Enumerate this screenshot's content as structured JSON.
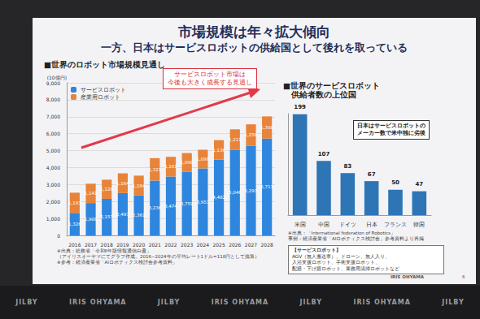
{
  "slide": {
    "title": "市場規模は年々拡大傾向",
    "subtitle": "一方、日本はサービスロボットの供給国として後れを取っている",
    "logo": "IRIS OHYAMA",
    "page": "6",
    "backdrop": [
      "JILBY",
      "IRIS OHYAMA",
      "JILBY",
      "IRIS OHYAMA",
      "JILBY",
      "IRIS OHYAMA",
      "JILBY"
    ],
    "left_notes": [
      "※出典：総務省「令和6年版情報通信白書」",
      "（アイリスオーヤマにてグラフ作成。2016~2024年の平均レート1ドル=118円として換算）",
      "※参考：経済産業省「AIロボティクス検討会参考資料」"
    ],
    "right_notes": [
      "※出典：「International federation of Robotics」",
      "事例：経済産業省「AIロボティクス検討会」参考資料より再掲"
    ],
    "definition": {
      "heading": "【サービスロボット】",
      "lines": [
        "AGV（無人搬送車）、ドローン、無人入り、",
        "入浴支援ロボット、手術支援ロボット、",
        "配膳・下げ膳ロボット、業務用清掃ロボットなど"
      ]
    }
  },
  "chart_data": [
    {
      "type": "bar",
      "title": "■世界のロボット市場規模見通し",
      "y_label": "(10億円)",
      "categories": [
        "2016",
        "2017",
        "2018",
        "2019",
        "2020",
        "2021",
        "2022",
        "2023",
        "2024",
        "2025",
        "2026",
        "2027",
        "2028"
      ],
      "series": [
        {
          "name": "サービスロボット",
          "color": "#2e86de",
          "values": [
            1326,
            1908,
            2157,
            2497,
            2361,
            3236,
            3474,
            3759,
            3953,
            4482,
            5046,
            5293,
            5711
          ],
          "value_labels": [
            "1,326",
            "1,908",
            "2,157",
            "2,497",
            "2,361",
            "3,236",
            "3,474",
            "3,759",
            "3,953",
            "4,482",
            "5,046",
            "5,293",
            "5,711"
          ]
        },
        {
          "name": "産業用ロボット",
          "color": "#e8833a",
          "values": [
            1193,
            1141,
            1128,
            1164,
            1164,
            1321,
            1161,
            1098,
            1099,
            1136,
            1211,
            1258,
            1308
          ],
          "value_labels": [
            "1,193",
            "1,141",
            "1,128",
            "1,164",
            "1,164",
            "1,321",
            "1,161",
            "1,098",
            "1,099",
            "1,136",
            "1,211",
            "1,258",
            "1,308"
          ]
        }
      ],
      "stacked": true,
      "data_labels": true,
      "legend": "top-left",
      "grid": true,
      "ylim": [
        0,
        9000
      ],
      "yticks": [
        0,
        {
          "value": 1000,
          "label": "1,000"
        },
        {
          "value": 2000,
          "label": "2,000"
        },
        {
          "value": 3000,
          "label": "3,000"
        },
        {
          "value": 4000,
          "label": "4,000"
        },
        {
          "value": 5000,
          "label": "5,000"
        },
        {
          "value": 6000,
          "label": "6,000"
        },
        {
          "value": 7000,
          "label": "7,000"
        },
        {
          "value": 8000,
          "label": "8,000"
        },
        {
          "value": 9000,
          "label": "9,000"
        }
      ],
      "annotation": "サービスロボット市場は\n今後も大きく成長する見通し"
    },
    {
      "type": "bar",
      "title": "■世界のサービスロボット\n　供給者数の上位国",
      "categories": [
        "米国",
        "中国",
        "ドイツ",
        "日本",
        "フランス",
        "韓国"
      ],
      "values": [
        199,
        107,
        83,
        67,
        50,
        47
      ],
      "color": "#2e75b6",
      "data_labels": true,
      "tick_labels": "x",
      "grid": false,
      "ylim": [
        0,
        200
      ],
      "annotation": "日本はサービスロボットの\nメーカー数で米中独に劣後"
    }
  ]
}
